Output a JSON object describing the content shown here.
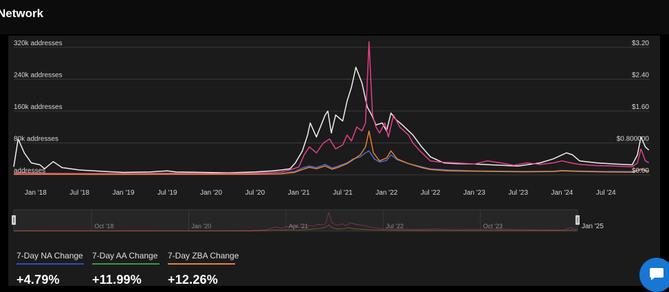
{
  "header": {
    "title": "Network"
  },
  "chart_data": {
    "type": "line",
    "title": "",
    "y_left_ticks": [
      "addresses",
      "80k addresses",
      "160k addresses",
      "240k addresses",
      "320k addresses"
    ],
    "y_right_ticks": [
      "$0.00",
      "$0.800000",
      "$1.60",
      "$2.40",
      "$3.20"
    ],
    "ylim_left": [
      0,
      320000
    ],
    "ylim_right": [
      0,
      3.2
    ],
    "x_ticks": [
      {
        "label": "Jan '18",
        "t": 2018.0
      },
      {
        "label": "Jul '18",
        "t": 2018.5
      },
      {
        "label": "Jan '19",
        "t": 2019.0
      },
      {
        "label": "Jul '19",
        "t": 2019.5
      },
      {
        "label": "Jan '20",
        "t": 2020.0
      },
      {
        "label": "Jul '20",
        "t": 2020.5
      },
      {
        "label": "Jan '21",
        "t": 2021.0
      },
      {
        "label": "Jul '21",
        "t": 2021.5
      },
      {
        "label": "Jan '22",
        "t": 2022.0
      },
      {
        "label": "Jul '22",
        "t": 2022.5
      },
      {
        "label": "Jan '23",
        "t": 2023.0
      },
      {
        "label": "Jul '23",
        "t": 2023.5
      },
      {
        "label": "Jan '24",
        "t": 2024.0
      },
      {
        "label": "Jul '24",
        "t": 2024.5
      }
    ],
    "xlim": [
      2017.75,
      2025.0
    ],
    "grid": true,
    "series": [
      {
        "color": "#f2f2f2",
        "axis": "right",
        "points": [
          [
            2017.75,
            0.2
          ],
          [
            2017.8,
            0.9
          ],
          [
            2017.87,
            0.55
          ],
          [
            2017.95,
            0.3
          ],
          [
            2018.05,
            0.25
          ],
          [
            2018.1,
            0.15
          ],
          [
            2018.2,
            0.33
          ],
          [
            2018.3,
            0.18
          ],
          [
            2018.5,
            0.12
          ],
          [
            2018.8,
            0.08
          ],
          [
            2019.0,
            0.06
          ],
          [
            2019.3,
            0.07
          ],
          [
            2019.5,
            0.1
          ],
          [
            2019.6,
            0.07
          ],
          [
            2019.9,
            0.06
          ],
          [
            2020.2,
            0.05
          ],
          [
            2020.5,
            0.07
          ],
          [
            2020.7,
            0.1
          ],
          [
            2020.8,
            0.12
          ],
          [
            2020.9,
            0.15
          ],
          [
            2020.96,
            0.3
          ],
          [
            2021.04,
            0.6
          ],
          [
            2021.1,
            1.0
          ],
          [
            2021.13,
            1.3
          ],
          [
            2021.2,
            0.95
          ],
          [
            2021.3,
            1.5
          ],
          [
            2021.33,
            1.6
          ],
          [
            2021.37,
            1.05
          ],
          [
            2021.42,
            1.5
          ],
          [
            2021.5,
            1.35
          ],
          [
            2021.55,
            1.85
          ],
          [
            2021.6,
            2.2
          ],
          [
            2021.65,
            2.7
          ],
          [
            2021.72,
            2.3
          ],
          [
            2021.78,
            1.7
          ],
          [
            2021.83,
            1.5
          ],
          [
            2021.88,
            1.25
          ],
          [
            2021.95,
            1.3
          ],
          [
            2022.0,
            1.1
          ],
          [
            2022.05,
            1.55
          ],
          [
            2022.1,
            1.4
          ],
          [
            2022.18,
            1.25
          ],
          [
            2022.3,
            1.0
          ],
          [
            2022.4,
            0.7
          ],
          [
            2022.5,
            0.45
          ],
          [
            2022.65,
            0.3
          ],
          [
            2022.8,
            0.28
          ],
          [
            2023.0,
            0.27
          ],
          [
            2023.2,
            0.25
          ],
          [
            2023.5,
            0.22
          ],
          [
            2023.75,
            0.3
          ],
          [
            2023.9,
            0.4
          ],
          [
            2024.0,
            0.5
          ],
          [
            2024.05,
            0.55
          ],
          [
            2024.12,
            0.5
          ],
          [
            2024.2,
            0.35
          ],
          [
            2024.4,
            0.3
          ],
          [
            2024.6,
            0.27
          ],
          [
            2024.8,
            0.25
          ],
          [
            2024.86,
            0.5
          ],
          [
            2024.9,
            0.95
          ],
          [
            2024.95,
            0.7
          ],
          [
            2024.99,
            0.62
          ]
        ]
      },
      {
        "color": "#e83e8c",
        "axis": "left",
        "points": [
          [
            2017.75,
            3000
          ],
          [
            2017.85,
            5000
          ],
          [
            2018.0,
            4000
          ],
          [
            2018.5,
            3000
          ],
          [
            2019.0,
            3000
          ],
          [
            2019.5,
            4000
          ],
          [
            2020.0,
            3000
          ],
          [
            2020.5,
            4000
          ],
          [
            2020.8,
            7000
          ],
          [
            2020.9,
            12000
          ],
          [
            2021.0,
            20000
          ],
          [
            2021.06,
            50000
          ],
          [
            2021.12,
            70000
          ],
          [
            2021.2,
            55000
          ],
          [
            2021.28,
            80000
          ],
          [
            2021.35,
            90000
          ],
          [
            2021.42,
            65000
          ],
          [
            2021.5,
            75000
          ],
          [
            2021.55,
            100000
          ],
          [
            2021.6,
            85000
          ],
          [
            2021.66,
            120000
          ],
          [
            2021.72,
            110000
          ],
          [
            2021.76,
            130000
          ],
          [
            2021.8,
            334000
          ],
          [
            2021.84,
            150000
          ],
          [
            2021.88,
            120000
          ],
          [
            2021.92,
            105000
          ],
          [
            2021.98,
            130000
          ],
          [
            2022.02,
            95000
          ],
          [
            2022.08,
            150000
          ],
          [
            2022.15,
            120000
          ],
          [
            2022.25,
            100000
          ],
          [
            2022.3,
            80000
          ],
          [
            2022.38,
            60000
          ],
          [
            2022.45,
            45000
          ],
          [
            2022.5,
            35000
          ],
          [
            2022.6,
            32000
          ],
          [
            2022.8,
            30000
          ],
          [
            2023.0,
            27000
          ],
          [
            2023.15,
            35000
          ],
          [
            2023.3,
            30000
          ],
          [
            2023.45,
            24000
          ],
          [
            2023.6,
            30000
          ],
          [
            2023.75,
            26000
          ],
          [
            2023.9,
            30000
          ],
          [
            2024.0,
            35000
          ],
          [
            2024.1,
            30000
          ],
          [
            2024.2,
            26000
          ],
          [
            2024.4,
            23000
          ],
          [
            2024.6,
            22000
          ],
          [
            2024.8,
            20000
          ],
          [
            2024.86,
            30000
          ],
          [
            2024.9,
            65000
          ],
          [
            2024.95,
            35000
          ],
          [
            2024.99,
            30000
          ]
        ]
      },
      {
        "color": "#4a6cd4",
        "axis": "left",
        "points": [
          [
            2017.75,
            1500
          ],
          [
            2018.0,
            1600
          ],
          [
            2018.5,
            1400
          ],
          [
            2019.0,
            1300
          ],
          [
            2019.5,
            1500
          ],
          [
            2020.0,
            1400
          ],
          [
            2020.5,
            1600
          ],
          [
            2020.8,
            3000
          ],
          [
            2020.95,
            8000
          ],
          [
            2021.05,
            18000
          ],
          [
            2021.12,
            22000
          ],
          [
            2021.2,
            18000
          ],
          [
            2021.3,
            26000
          ],
          [
            2021.38,
            17000
          ],
          [
            2021.45,
            22000
          ],
          [
            2021.55,
            30000
          ],
          [
            2021.62,
            40000
          ],
          [
            2021.7,
            45000
          ],
          [
            2021.76,
            55000
          ],
          [
            2021.8,
            60000
          ],
          [
            2021.86,
            40000
          ],
          [
            2021.92,
            32000
          ],
          [
            2022.0,
            36000
          ],
          [
            2022.05,
            50000
          ],
          [
            2022.12,
            38000
          ],
          [
            2022.25,
            28000
          ],
          [
            2022.4,
            20000
          ],
          [
            2022.5,
            15000
          ],
          [
            2022.7,
            12000
          ],
          [
            2023.0,
            10000
          ],
          [
            2023.3,
            9000
          ],
          [
            2023.6,
            8500
          ],
          [
            2023.9,
            9000
          ],
          [
            2024.0,
            11000
          ],
          [
            2024.2,
            9500
          ],
          [
            2024.5,
            8500
          ],
          [
            2024.8,
            8000
          ],
          [
            2024.9,
            12000
          ],
          [
            2024.99,
            9000
          ]
        ]
      },
      {
        "color": "#e8832a",
        "axis": "left",
        "points": [
          [
            2017.75,
            1200
          ],
          [
            2018.0,
            1300
          ],
          [
            2018.5,
            1200
          ],
          [
            2019.0,
            1100
          ],
          [
            2019.5,
            1300
          ],
          [
            2020.0,
            1200
          ],
          [
            2020.5,
            1400
          ],
          [
            2020.8,
            2500
          ],
          [
            2020.95,
            6000
          ],
          [
            2021.05,
            14000
          ],
          [
            2021.12,
            19000
          ],
          [
            2021.2,
            15000
          ],
          [
            2021.3,
            22000
          ],
          [
            2021.38,
            14000
          ],
          [
            2021.45,
            19000
          ],
          [
            2021.55,
            28000
          ],
          [
            2021.62,
            38000
          ],
          [
            2021.7,
            50000
          ],
          [
            2021.76,
            70000
          ],
          [
            2021.8,
            110000
          ],
          [
            2021.85,
            55000
          ],
          [
            2021.92,
            35000
          ],
          [
            2022.0,
            42000
          ],
          [
            2022.05,
            60000
          ],
          [
            2022.12,
            40000
          ],
          [
            2022.25,
            28000
          ],
          [
            2022.4,
            18000
          ],
          [
            2022.5,
            13000
          ],
          [
            2022.7,
            10000
          ],
          [
            2023.0,
            9000
          ],
          [
            2023.3,
            8000
          ],
          [
            2023.6,
            7500
          ],
          [
            2023.9,
            8000
          ],
          [
            2024.0,
            10000
          ],
          [
            2024.2,
            8500
          ],
          [
            2024.5,
            7000
          ],
          [
            2024.8,
            6500
          ],
          [
            2024.9,
            15000
          ],
          [
            2024.99,
            8000
          ]
        ]
      }
    ],
    "navigator": {
      "labels": [
        {
          "label": "Oct '18",
          "t": 2018.75
        },
        {
          "label": "Jan '20",
          "t": 2020.0
        },
        {
          "label": "Apr '21",
          "t": 2021.25
        },
        {
          "label": "Jul '22",
          "t": 2022.5
        },
        {
          "label": "Oct '23",
          "t": 2023.75
        }
      ],
      "end_label": "Jan '25"
    }
  },
  "metrics": [
    {
      "label": "7-Day NA Change",
      "value": "+4.79%",
      "color": "#2b4fc7"
    },
    {
      "label": "7-Day AA Change",
      "value": "+11.99%",
      "color": "#3c9a3c"
    },
    {
      "label": "7-Day ZBA Change",
      "value": "+12.26%",
      "color": "#e8832a"
    }
  ],
  "chat": {
    "icon": "chat-bubble-icon"
  }
}
